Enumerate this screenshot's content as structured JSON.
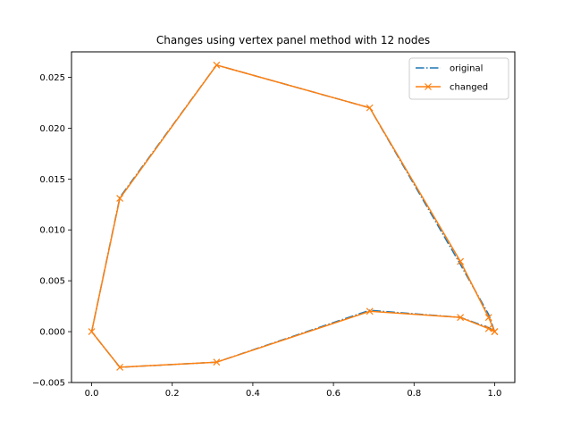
{
  "chart_data": {
    "type": "line",
    "title": "Changes using vertex panel method with 12 nodes",
    "xlabel": "",
    "ylabel": "",
    "xlim": [
      -0.05,
      1.05
    ],
    "ylim": [
      -0.005,
      0.0275
    ],
    "xticks": [
      0.0,
      0.2,
      0.4,
      0.6,
      0.8,
      1.0
    ],
    "xtick_labels": [
      "0.0",
      "0.2",
      "0.4",
      "0.6",
      "0.8",
      "1.0"
    ],
    "yticks": [
      -0.005,
      0.0,
      0.005,
      0.01,
      0.015,
      0.02,
      0.025
    ],
    "ytick_labels": [
      "−0.005",
      "0.000",
      "0.005",
      "0.010",
      "0.015",
      "0.020",
      "0.025"
    ],
    "grid": false,
    "legend_position": "top-right",
    "series": [
      {
        "name": "original",
        "color": "#1f77b4",
        "style": "dash-dot",
        "marker": "none",
        "x": [
          1.0,
          0.985,
          0.915,
          0.69,
          0.31,
          0.07,
          0.0,
          0.07,
          0.31,
          0.69,
          0.915,
          0.985,
          1.0
        ],
        "y": [
          0.0,
          0.0017,
          0.0066,
          0.022,
          0.0262,
          0.0132,
          0.0,
          -0.0035,
          -0.003,
          0.0021,
          0.0014,
          0.0004,
          0.0
        ]
      },
      {
        "name": "changed",
        "color": "#ff7f0e",
        "style": "solid",
        "marker": "x",
        "x": [
          1.0,
          0.985,
          0.915,
          0.69,
          0.31,
          0.07,
          0.0,
          0.07,
          0.31,
          0.69,
          0.915,
          0.985,
          1.0
        ],
        "y": [
          0.0,
          0.0014,
          0.0069,
          0.022,
          0.0262,
          0.0131,
          0.0,
          -0.0035,
          -0.003,
          0.002,
          0.0014,
          0.0003,
          0.0
        ]
      }
    ]
  }
}
